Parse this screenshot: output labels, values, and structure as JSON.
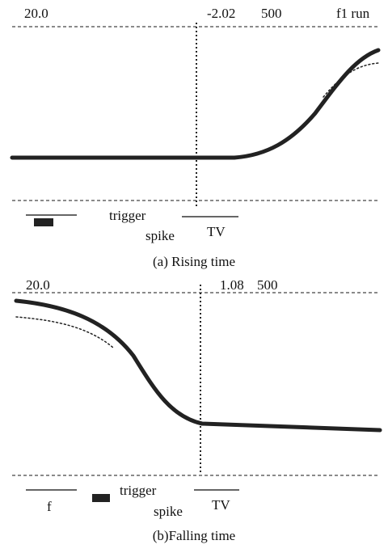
{
  "panels": [
    {
      "header": {
        "left": "20.0",
        "center": "-2.02",
        "right": "500",
        "status": "f1 run"
      },
      "footer": {
        "trigger": "trigger",
        "spike": "spike",
        "mode": "TV"
      },
      "caption": "(a) Rising time"
    },
    {
      "header": {
        "left": "20.0",
        "center": "1.08",
        "right": "500"
      },
      "footer": {
        "left": "f",
        "trigger": "trigger",
        "spike": "spike",
        "mode": "TV"
      },
      "caption": "(b)Falling time"
    }
  ]
}
